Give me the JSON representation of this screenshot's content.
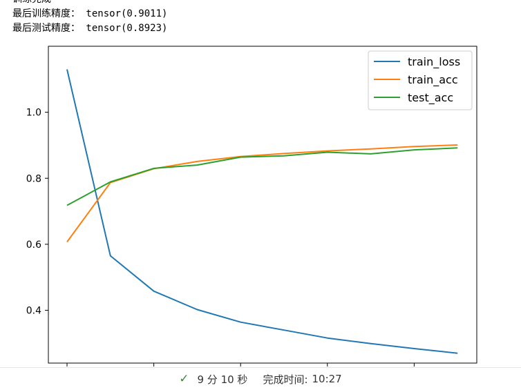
{
  "output": {
    "lines": [
      "训练完成",
      "最后训练精度： tensor(0.9011)",
      "最后测试精度： tensor(0.8923)"
    ]
  },
  "status": {
    "icon": "check-icon",
    "check_glyph": "✓",
    "duration": "9 分 10 秒",
    "completed_label": "完成时间:",
    "completed_time": "10:27"
  },
  "colors": {
    "train_loss": "#1f77b4",
    "train_acc": "#ff7f0e",
    "test_acc": "#2ca02c",
    "check": "#388a34"
  },
  "chart_data": {
    "type": "line",
    "x": [
      0,
      1,
      2,
      3,
      4,
      5,
      6,
      7,
      8,
      9
    ],
    "ylim": [
      0.24,
      1.2
    ],
    "yticks": [
      "0.4",
      "0.6",
      "0.8",
      "1.0"
    ],
    "ytick_values": [
      0.4,
      0.6,
      0.8,
      1.0
    ],
    "xticks_labeled": false,
    "grid": false,
    "legend_position": "top-right",
    "series": [
      {
        "name": "train_loss",
        "values": [
          1.13,
          0.565,
          0.458,
          0.402,
          0.364,
          0.34,
          0.316,
          0.299,
          0.284,
          0.27
        ]
      },
      {
        "name": "train_acc",
        "values": [
          0.607,
          0.787,
          0.829,
          0.851,
          0.866,
          0.875,
          0.883,
          0.889,
          0.896,
          0.901
        ]
      },
      {
        "name": "test_acc",
        "values": [
          0.718,
          0.789,
          0.83,
          0.84,
          0.864,
          0.868,
          0.879,
          0.874,
          0.886,
          0.892
        ]
      }
    ]
  }
}
